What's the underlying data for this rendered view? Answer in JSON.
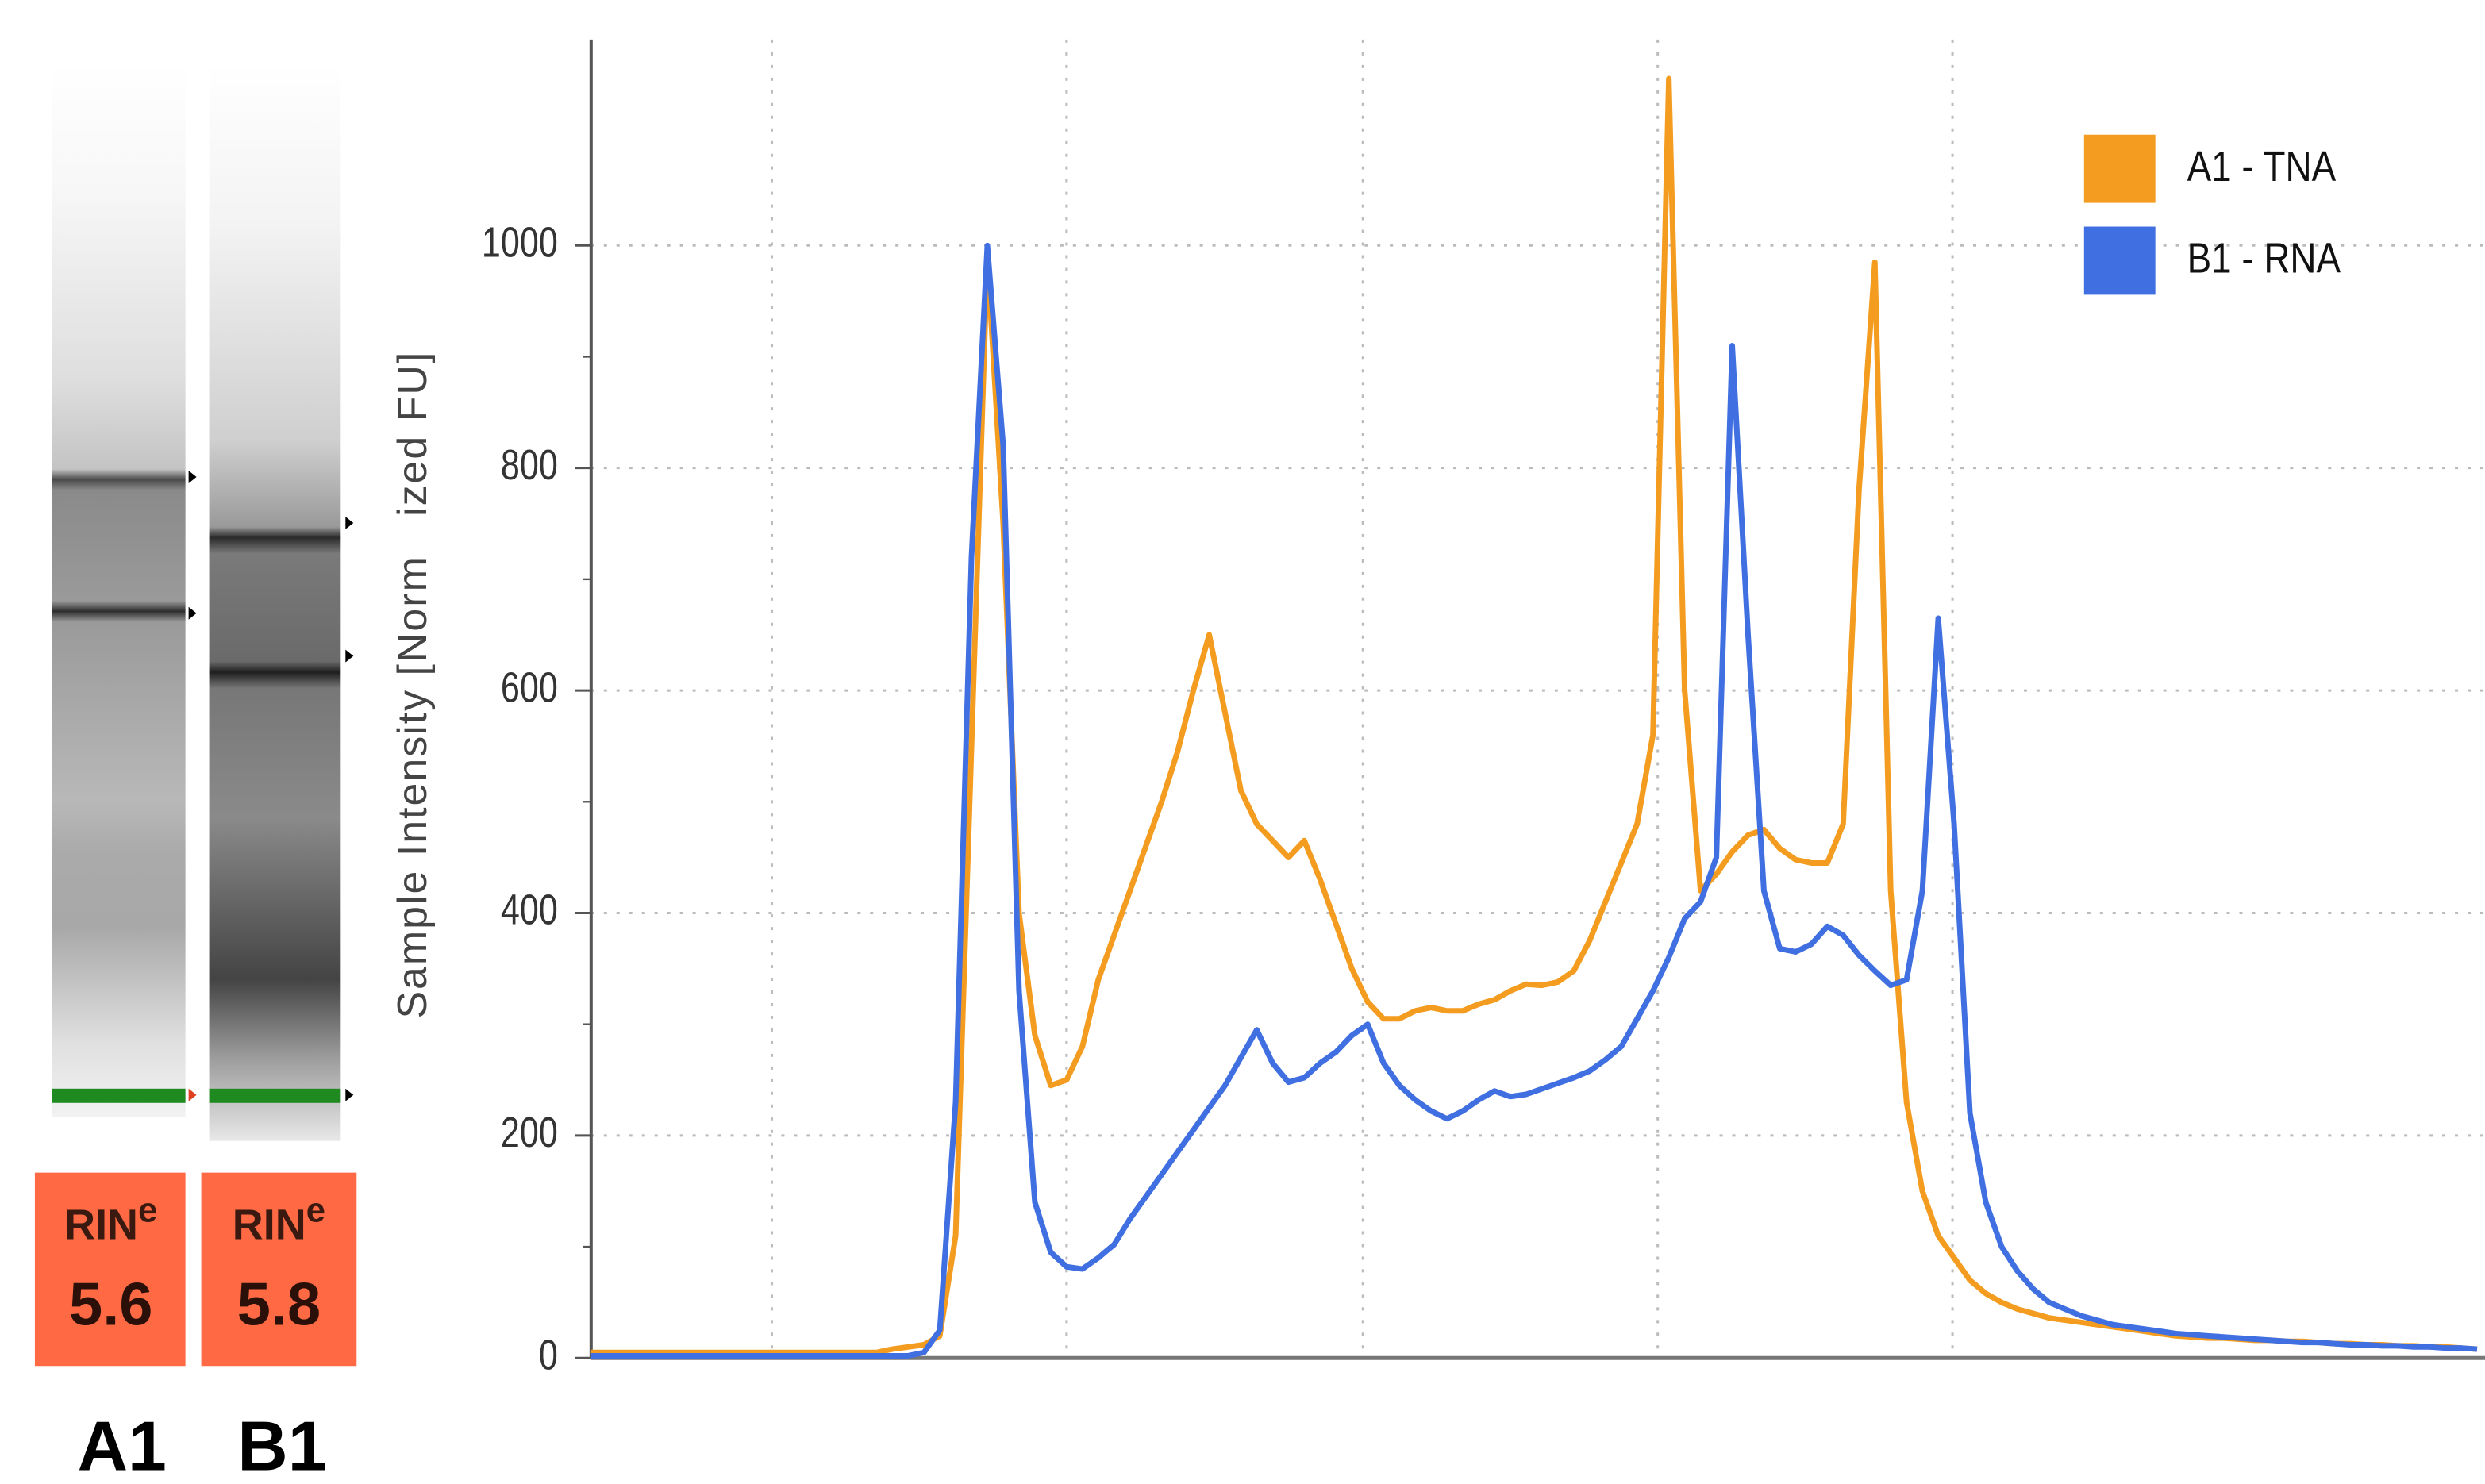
{
  "lanes": [
    {
      "label": "A1",
      "rin_word": "RIN",
      "rin_sup": "e",
      "rin": 5.6
    },
    {
      "label": "B1",
      "rin_word": "RIN",
      "rin_sup": "e",
      "rin": 5.8
    }
  ],
  "chart_data": {
    "type": "line",
    "y_label": "Sample Intensity [Norm   ized FU]",
    "ylim": [
      0,
      1185
    ],
    "yticks": [
      0,
      200,
      400,
      600,
      800,
      1000
    ],
    "grid": true,
    "legend": "top-right",
    "series": [
      {
        "name": "A1 - TNA",
        "color": "#f39c1f",
        "values": [
          5,
          5,
          5,
          5,
          5,
          5,
          5,
          5,
          5,
          5,
          5,
          5,
          5,
          5,
          5,
          5,
          5,
          5,
          5,
          8,
          10,
          12,
          20,
          110,
          550,
          990,
          750,
          400,
          290,
          245,
          250,
          280,
          340,
          380,
          420,
          460,
          500,
          545,
          600,
          650,
          580,
          510,
          480,
          465,
          450,
          465,
          430,
          390,
          350,
          320,
          305,
          305,
          312,
          315,
          312,
          312,
          318,
          322,
          330,
          336,
          335,
          338,
          348,
          375,
          410,
          445,
          480,
          560,
          1150,
          600,
          420,
          435,
          455,
          470,
          475,
          458,
          448,
          445,
          445,
          480,
          780,
          985,
          420,
          230,
          150,
          110,
          90,
          70,
          58,
          50,
          44,
          40,
          36,
          34,
          32,
          30,
          28,
          26,
          24,
          22,
          20,
          19,
          18,
          18,
          17,
          16,
          16,
          15,
          15,
          14,
          13,
          13,
          12,
          12,
          11,
          11,
          10,
          10,
          9,
          8
        ]
      },
      {
        "name": "B1 - RNA",
        "color": "#3f6fe0",
        "values": [
          2,
          2,
          2,
          2,
          2,
          2,
          2,
          2,
          2,
          2,
          2,
          2,
          2,
          2,
          2,
          2,
          2,
          2,
          2,
          2,
          2,
          5,
          25,
          230,
          720,
          1000,
          820,
          330,
          140,
          95,
          82,
          80,
          90,
          102,
          125,
          145,
          165,
          185,
          205,
          225,
          245,
          270,
          295,
          265,
          248,
          252,
          265,
          275,
          290,
          300,
          265,
          245,
          232,
          222,
          215,
          222,
          232,
          240,
          235,
          237,
          242,
          247,
          252,
          258,
          268,
          280,
          305,
          330,
          360,
          395,
          410,
          450,
          910,
          650,
          420,
          368,
          365,
          372,
          388,
          380,
          362,
          348,
          335,
          340,
          420,
          665,
          480,
          220,
          140,
          100,
          78,
          62,
          50,
          44,
          38,
          34,
          30,
          28,
          26,
          24,
          22,
          21,
          20,
          19,
          18,
          17,
          16,
          15,
          14,
          14,
          13,
          12,
          12,
          11,
          11,
          10,
          10,
          9,
          9,
          8
        ]
      }
    ]
  }
}
